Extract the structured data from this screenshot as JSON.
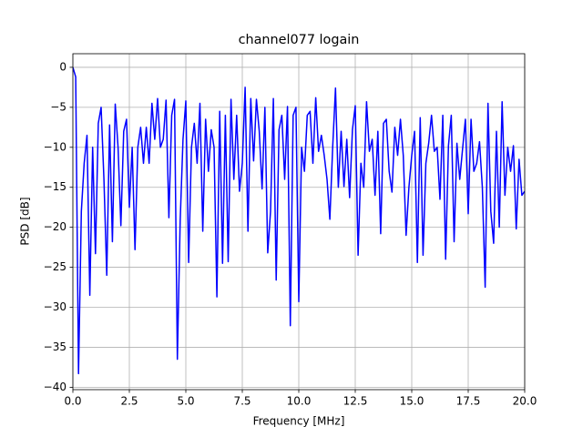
{
  "chart_data": {
    "type": "line",
    "title": "channel077 logain",
    "xlabel": "Frequency [MHz]",
    "ylabel": "PSD [dB]",
    "color": "#0000ff",
    "grid": true,
    "xlim": [
      0,
      20
    ],
    "ylim": [
      -40.3,
      1.7
    ],
    "xticks": [
      {
        "value": 0,
        "label": "0.0"
      },
      {
        "value": 2.5,
        "label": "2.5"
      },
      {
        "value": 5,
        "label": "5.0"
      },
      {
        "value": 7.5,
        "label": "7.5"
      },
      {
        "value": 10,
        "label": "10.0"
      },
      {
        "value": 12.5,
        "label": "12.5"
      },
      {
        "value": 15,
        "label": "15.0"
      },
      {
        "value": 17.5,
        "label": "17.5"
      },
      {
        "value": 20,
        "label": "20.0"
      }
    ],
    "yticks": [
      0,
      {
        "value": -5,
        "label": "−5"
      },
      {
        "value": -10,
        "label": "−10"
      },
      {
        "value": -15,
        "label": "−15"
      },
      {
        "value": -20,
        "label": "−20"
      },
      {
        "value": -25,
        "label": "−25"
      },
      {
        "value": -30,
        "label": "−30"
      },
      {
        "value": -35,
        "label": "−35"
      },
      {
        "value": -40,
        "label": "−40"
      }
    ],
    "x": [
      0,
      0.125,
      0.25,
      0.375,
      0.5,
      0.625,
      0.75,
      0.875,
      1,
      1.125,
      1.25,
      1.375,
      1.5,
      1.625,
      1.75,
      1.875,
      2,
      2.125,
      2.25,
      2.375,
      2.5,
      2.625,
      2.75,
      2.875,
      3,
      3.125,
      3.25,
      3.375,
      3.5,
      3.625,
      3.75,
      3.875,
      4,
      4.125,
      4.25,
      4.375,
      4.5,
      4.625,
      4.75,
      4.875,
      5,
      5.125,
      5.25,
      5.375,
      5.5,
      5.625,
      5.75,
      5.875,
      6,
      6.125,
      6.25,
      6.375,
      6.5,
      6.625,
      6.75,
      6.875,
      7,
      7.125,
      7.25,
      7.375,
      7.5,
      7.625,
      7.75,
      7.875,
      8,
      8.125,
      8.25,
      8.375,
      8.5,
      8.625,
      8.75,
      8.875,
      9,
      9.125,
      9.25,
      9.375,
      9.5,
      9.625,
      9.75,
      9.875,
      10,
      10.125,
      10.25,
      10.375,
      10.5,
      10.625,
      10.75,
      10.875,
      11,
      11.125,
      11.25,
      11.375,
      11.5,
      11.625,
      11.75,
      11.875,
      12,
      12.125,
      12.25,
      12.375,
      12.5,
      12.625,
      12.75,
      12.875,
      13,
      13.125,
      13.25,
      13.375,
      13.5,
      13.625,
      13.75,
      13.875,
      14,
      14.125,
      14.25,
      14.375,
      14.5,
      14.625,
      14.75,
      14.875,
      15,
      15.125,
      15.25,
      15.375,
      15.5,
      15.625,
      15.75,
      15.875,
      16,
      16.125,
      16.25,
      16.375,
      16.5,
      16.625,
      16.75,
      16.875,
      17,
      17.125,
      17.25,
      17.375,
      17.5,
      17.625,
      17.75,
      17.875,
      18,
      18.125,
      18.25,
      18.375,
      18.5,
      18.625,
      18.75,
      18.875,
      19,
      19.125,
      19.25,
      19.375,
      19.5,
      19.625,
      19.75,
      19.875,
      20
    ],
    "values": [
      0,
      -1.2,
      -38.3,
      -18,
      -12,
      -8.5,
      -28.5,
      -10,
      -23.3,
      -7,
      -5,
      -14,
      -26,
      -7.2,
      -21.8,
      -4.6,
      -10,
      -19.8,
      -8,
      -6.5,
      -17.5,
      -10,
      -22.8,
      -10,
      -7.5,
      -12,
      -7.5,
      -12,
      -4.5,
      -9,
      -3.9,
      -10,
      -9,
      -4.1,
      -18.8,
      -6,
      -4,
      -36.5,
      -19.2,
      -9,
      -4.2,
      -24.4,
      -10,
      -7,
      -12,
      -4.5,
      -20.5,
      -6.5,
      -13,
      -7.8,
      -10,
      -28.7,
      -5.5,
      -24.5,
      -6,
      -24.3,
      -4,
      -14,
      -6,
      -15.5,
      -12,
      -2.5,
      -20.5,
      -3.9,
      -11.7,
      -4,
      -8,
      -15.2,
      -5,
      -23.2,
      -18,
      -3.9,
      -26.6,
      -7.8,
      -6,
      -14,
      -4.9,
      -32.3,
      -6,
      -5,
      -29.3,
      -10,
      -13,
      -6,
      -5.5,
      -12,
      -3.8,
      -10.5,
      -8.5,
      -11,
      -14,
      -19,
      -10,
      -2.6,
      -15,
      -8,
      -14.9,
      -9,
      -16.3,
      -7.8,
      -4.8,
      -23.5,
      -12,
      -15,
      -4.3,
      -10.5,
      -9,
      -16,
      -8,
      -20.8,
      -7,
      -6.5,
      -13,
      -15.6,
      -7.5,
      -11,
      -6.5,
      -11,
      -21,
      -15,
      -11,
      -8,
      -24.4,
      -6.3,
      -23.5,
      -12,
      -9.5,
      -6,
      -10.5,
      -10,
      -16.5,
      -6,
      -24,
      -9.8,
      -6,
      -21.8,
      -9.5,
      -14,
      -10.2,
      -6.5,
      -18.3,
      -6.5,
      -13,
      -12,
      -9.3,
      -15,
      -27.5,
      -4.5,
      -18,
      -22,
      -8,
      -20,
      -4.3,
      -16,
      -10,
      -13,
      -9.8,
      -20.2,
      -11.5,
      -16,
      -15.5
    ]
  }
}
